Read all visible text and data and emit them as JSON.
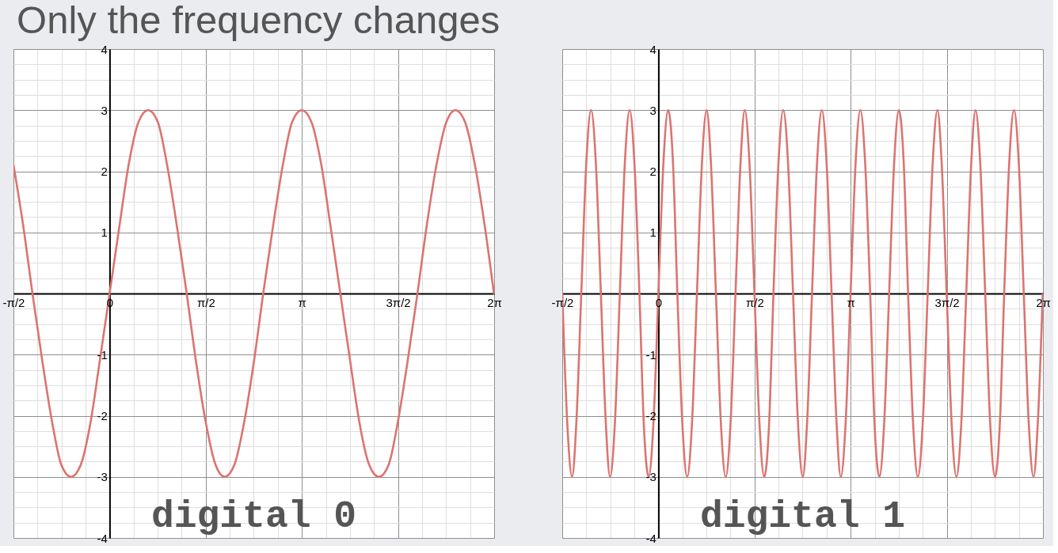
{
  "chart_data": [
    {
      "type": "line",
      "title": "Only the frequency changes",
      "annotations": [
        "digital 0"
      ],
      "x": [
        -1.57,
        -1.41,
        -1.26,
        -1.1,
        -0.94,
        -0.79,
        -0.63,
        -0.47,
        -0.31,
        -0.16,
        0,
        0.16,
        0.31,
        0.47,
        0.63,
        0.79,
        0.94,
        1.1,
        1.26,
        1.41,
        1.57,
        1.73,
        1.88,
        2.04,
        2.2,
        2.36,
        2.51,
        2.67,
        2.83,
        2.98,
        3.14,
        3.3,
        3.46,
        3.61,
        3.77,
        3.93,
        4.08,
        4.24,
        4.4,
        4.56,
        4.71,
        4.87,
        5.03,
        5.18,
        5.34,
        5.5,
        5.65,
        5.81,
        5.97,
        6.13,
        6.28
      ],
      "series": [
        {
          "color": "#db7470",
          "values": [
            2.1,
            1.1,
            0,
            -1.1,
            -2.1,
            -2.8,
            -3,
            -2.8,
            -2.1,
            -1.1,
            0,
            1.1,
            2.1,
            2.8,
            3,
            2.8,
            2.1,
            1.1,
            0,
            -1.1,
            -2.1,
            -2.8,
            -3,
            -2.8,
            -2.1,
            -1.1,
            0,
            1.1,
            2.1,
            2.8,
            3,
            2.8,
            2.1,
            1.1,
            0,
            -1.1,
            -2.1,
            -2.8,
            -3,
            -2.8,
            -2.1,
            -1.1,
            0,
            1.1,
            2.1,
            2.8,
            3,
            2.8,
            2.1,
            1.1,
            0
          ]
        }
      ],
      "xlim": [
        -1.5708,
        6.2832
      ],
      "ylim": [
        -4,
        4
      ],
      "xticks": [
        {
          "value": -1.5708,
          "label": "-π/2"
        },
        0,
        {
          "value": 1.5708,
          "label": "π/2"
        },
        {
          "value": 3.1416,
          "label": "π"
        },
        {
          "value": 4.7124,
          "label": "3π/2"
        },
        {
          "value": 6.2832,
          "label": "2π"
        }
      ],
      "yticks": [
        -4,
        -3,
        -2,
        -1,
        {
          "value": 0,
          "label": null
        },
        1,
        2,
        3,
        4
      ],
      "grid": true
    },
    {
      "type": "line",
      "annotations": [
        "digital 1"
      ],
      "x": [
        -1.57,
        -1.49,
        -1.41,
        -1.34,
        -1.26,
        -1.18,
        -1.1,
        -1.02,
        -0.94,
        -0.86,
        -0.79,
        -0.71,
        -0.63,
        -0.55,
        -0.47,
        -0.39,
        -0.31,
        -0.24,
        -0.16,
        -0.08,
        0,
        0.08,
        0.16,
        0.24,
        0.31,
        0.39,
        0.47,
        0.55,
        0.63,
        0.71,
        0.79,
        0.86,
        0.94,
        1.02,
        1.1,
        1.18,
        1.26,
        1.34,
        1.41,
        1.49,
        1.57,
        1.65,
        1.73,
        1.81,
        1.88,
        1.96,
        2.04,
        2.12,
        2.2,
        2.28,
        2.36,
        2.43,
        2.51,
        2.59,
        2.67,
        2.75,
        2.83,
        2.91,
        2.98,
        3.06,
        3.14,
        3.22,
        3.3,
        3.38,
        3.46,
        3.53,
        3.61,
        3.69,
        3.77,
        3.85,
        3.93,
        4.01,
        4.08,
        4.16,
        4.24,
        4.32,
        4.4,
        4.48,
        4.56,
        4.63,
        4.71,
        4.79,
        4.87,
        4.95,
        5.03,
        5.11,
        5.18,
        5.26,
        5.34,
        5.42,
        5.5,
        5.58,
        5.65,
        5.73,
        5.81,
        5.89,
        5.97,
        6.05,
        6.13,
        6.2,
        6.28
      ],
      "series": [
        {
          "color": "#db7470",
          "values": [
            0,
            -2.1,
            -3,
            -2.1,
            0,
            2.1,
            3,
            2.1,
            0,
            -2.1,
            -3,
            -2.1,
            0,
            2.1,
            3,
            2.1,
            0,
            -2.1,
            -3,
            -2.1,
            0,
            2.1,
            3,
            2.1,
            0,
            -2.1,
            -3,
            -2.1,
            0,
            2.1,
            3,
            2.1,
            0,
            -2.1,
            -3,
            -2.1,
            0,
            2.1,
            3,
            2.1,
            0,
            -2.1,
            -3,
            -2.1,
            0,
            2.1,
            3,
            2.1,
            0,
            -2.1,
            -3,
            -2.1,
            0,
            2.1,
            3,
            2.1,
            0,
            -2.1,
            -3,
            -2.1,
            0,
            2.1,
            3,
            2.1,
            0,
            -2.1,
            -3,
            -2.1,
            0,
            2.1,
            3,
            2.1,
            0,
            -2.1,
            -3,
            -2.1,
            0,
            2.1,
            3,
            2.1,
            0,
            -2.1,
            -3,
            -2.1,
            0,
            2.1,
            3,
            2.1,
            0,
            -2.1,
            -3,
            -2.1,
            0,
            2.1,
            3,
            2.1,
            0,
            -2.1,
            -3,
            -2.1,
            0
          ]
        }
      ],
      "xlim": [
        -1.5708,
        6.2832
      ],
      "ylim": [
        -4,
        4
      ],
      "xticks": [
        {
          "value": -1.5708,
          "label": "-π/2"
        },
        0,
        {
          "value": 1.5708,
          "label": "π/2"
        },
        {
          "value": 3.1416,
          "label": "π"
        },
        {
          "value": 4.7124,
          "label": "3π/2"
        },
        {
          "value": 6.2832,
          "label": "2π"
        }
      ],
      "yticks": [
        -4,
        -3,
        -2,
        -1,
        {
          "value": 0,
          "label": null
        },
        1,
        2,
        3,
        4
      ],
      "grid": true
    }
  ]
}
